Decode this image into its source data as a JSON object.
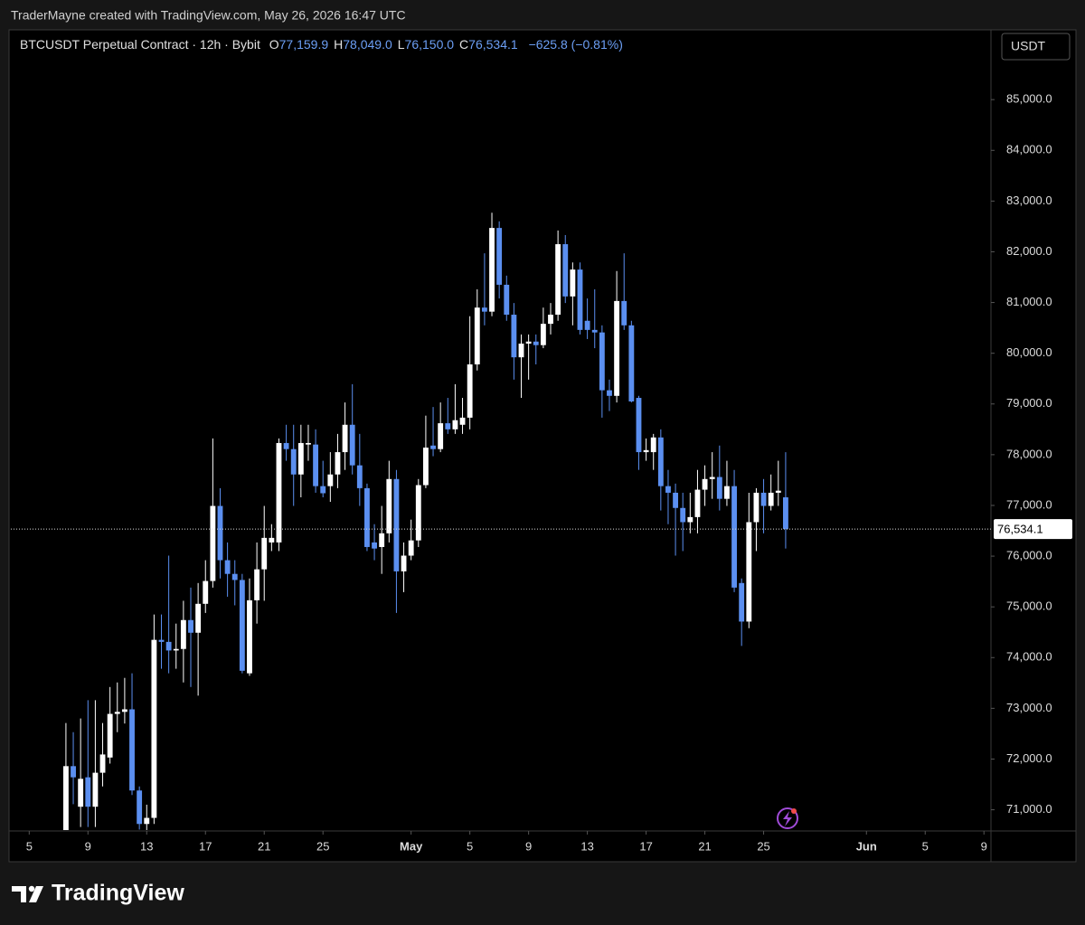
{
  "header": {
    "caption": "TraderMayne created with TradingView.com, May 26, 2026 16:47 UTC"
  },
  "legend": {
    "symbol": "BTCUSDT Perpetual Contract · 12h · Bybit",
    "ohlc": [
      {
        "key": "O",
        "label": "77,159.9"
      },
      {
        "key": "H",
        "label": "78,049.0"
      },
      {
        "key": "L",
        "label": "76,150.0"
      },
      {
        "key": "C",
        "label": "76,534.1"
      }
    ],
    "change": "−625.8 (−0.81%)"
  },
  "currency": "USDT",
  "footer": {
    "brand": "TradingView"
  },
  "chart_data": {
    "type": "candlestick",
    "up_color": "#ffffff",
    "down_color": "#5b8ff0",
    "grid": false,
    "ylim": [
      70600,
      86340
    ],
    "yticks": [
      {
        "value": 71000,
        "label": "71,000.0"
      },
      {
        "value": 72000,
        "label": "72,000.0"
      },
      {
        "value": 73000,
        "label": "73,000.0"
      },
      {
        "value": 74000,
        "label": "74,000.0"
      },
      {
        "value": 75000,
        "label": "75,000.0"
      },
      {
        "value": 76000,
        "label": "76,000.0"
      },
      {
        "value": 77000,
        "label": "77,000.0"
      },
      {
        "value": 78000,
        "label": "78,000.0"
      },
      {
        "value": 79000,
        "label": "79,000.0"
      },
      {
        "value": 80000,
        "label": "80,000.0"
      },
      {
        "value": 81000,
        "label": "81,000.0"
      },
      {
        "value": 82000,
        "label": "82,000.0"
      },
      {
        "value": 83000,
        "label": "83,000.0"
      },
      {
        "value": 84000,
        "label": "84,000.0"
      },
      {
        "value": 85000,
        "label": "85,000.0"
      }
    ],
    "xlim": [
      "2026-04-03T18:00",
      "2026-06-09T10:00"
    ],
    "xticks": [
      {
        "value": "2026-04-05",
        "label": "5"
      },
      {
        "value": "2026-04-09",
        "label": "9"
      },
      {
        "value": "2026-04-13",
        "label": "13"
      },
      {
        "value": "2026-04-17",
        "label": "17"
      },
      {
        "value": "2026-04-21",
        "label": "21"
      },
      {
        "value": "2026-04-25",
        "label": "25"
      },
      {
        "value": "2026-05-01",
        "label": "May"
      },
      {
        "value": "2026-05-05",
        "label": "5"
      },
      {
        "value": "2026-05-09",
        "label": "9"
      },
      {
        "value": "2026-05-13",
        "label": "13"
      },
      {
        "value": "2026-05-17",
        "label": "17"
      },
      {
        "value": "2026-05-21",
        "label": "21"
      },
      {
        "value": "2026-05-25",
        "label": "25"
      },
      {
        "value": "2026-06-01",
        "label": "Jun"
      },
      {
        "value": "2026-06-05",
        "label": "5"
      },
      {
        "value": "2026-06-09",
        "label": "9"
      }
    ],
    "last_price": {
      "value": 76534.1,
      "label": "76,534.1"
    },
    "x": [
      "2026-04-07T12:00",
      "2026-04-08T00:00",
      "2026-04-08T12:00",
      "2026-04-09T00:00",
      "2026-04-09T12:00",
      "2026-04-10T00:00",
      "2026-04-10T12:00",
      "2026-04-11T00:00",
      "2026-04-11T12:00",
      "2026-04-12T00:00",
      "2026-04-12T12:00",
      "2026-04-13T00:00",
      "2026-04-13T12:00",
      "2026-04-14T00:00",
      "2026-04-14T12:00",
      "2026-04-15T00:00",
      "2026-04-15T12:00",
      "2026-04-16T00:00",
      "2026-04-16T12:00",
      "2026-04-17T00:00",
      "2026-04-17T12:00",
      "2026-04-18T00:00",
      "2026-04-18T12:00",
      "2026-04-19T00:00",
      "2026-04-19T12:00",
      "2026-04-20T00:00",
      "2026-04-20T12:00",
      "2026-04-21T00:00",
      "2026-04-21T12:00",
      "2026-04-22T00:00",
      "2026-04-22T12:00",
      "2026-04-23T00:00",
      "2026-04-23T12:00",
      "2026-04-24T00:00",
      "2026-04-24T12:00",
      "2026-04-25T00:00",
      "2026-04-25T12:00",
      "2026-04-26T00:00",
      "2026-04-26T12:00",
      "2026-04-27T00:00",
      "2026-04-27T12:00",
      "2026-04-28T00:00",
      "2026-04-28T12:00",
      "2026-04-29T00:00",
      "2026-04-29T12:00",
      "2026-04-30T00:00",
      "2026-04-30T12:00",
      "2026-05-01T00:00",
      "2026-05-01T12:00",
      "2026-05-02T00:00",
      "2026-05-02T12:00",
      "2026-05-03T00:00",
      "2026-05-03T12:00",
      "2026-05-04T00:00",
      "2026-05-04T12:00",
      "2026-05-05T00:00",
      "2026-05-05T12:00",
      "2026-05-06T00:00",
      "2026-05-06T12:00",
      "2026-05-07T00:00",
      "2026-05-07T12:00",
      "2026-05-08T00:00",
      "2026-05-08T12:00",
      "2026-05-09T00:00",
      "2026-05-09T12:00",
      "2026-05-10T00:00",
      "2026-05-10T12:00",
      "2026-05-11T00:00",
      "2026-05-11T12:00",
      "2026-05-12T00:00",
      "2026-05-12T12:00",
      "2026-05-13T00:00",
      "2026-05-13T12:00",
      "2026-05-14T00:00",
      "2026-05-14T12:00",
      "2026-05-15T00:00",
      "2026-05-15T12:00",
      "2026-05-16T00:00",
      "2026-05-16T12:00",
      "2026-05-17T00:00",
      "2026-05-17T12:00",
      "2026-05-18T00:00",
      "2026-05-18T12:00",
      "2026-05-19T00:00",
      "2026-05-19T12:00",
      "2026-05-20T00:00",
      "2026-05-20T12:00",
      "2026-05-21T00:00",
      "2026-05-21T12:00",
      "2026-05-22T00:00",
      "2026-05-22T12:00",
      "2026-05-23T00:00",
      "2026-05-23T12:00",
      "2026-05-24T00:00",
      "2026-05-24T12:00",
      "2026-05-25T00:00",
      "2026-05-25T12:00",
      "2026-05-26T00:00",
      "2026-05-26T12:00"
    ],
    "open": [
      70400,
      71860,
      71060,
      71640,
      71060,
      71730,
      72030,
      72890,
      72930,
      72980,
      71380,
      70720,
      70840,
      74350,
      74310,
      74140,
      74170,
      74740,
      74490,
      75060,
      75510,
      76990,
      75920,
      75650,
      75530,
      73690,
      75130,
      75740,
      76270,
      76270,
      78230,
      78110,
      77610,
      78200,
      78200,
      77380,
      77380,
      77610,
      78050,
      78590,
      77790,
      77340,
      76270,
      76180,
      76450,
      77520,
      75700,
      76010,
      76310,
      77400,
      78180,
      78110,
      78620,
      78500,
      78590,
      78730,
      79780,
      80900,
      80820,
      82470,
      81350,
      80760,
      79920,
      80190,
      80230,
      80160,
      80580,
      80760,
      82150,
      81120,
      81650,
      80640,
      80460,
      80410,
      79270,
      79160,
      81030,
      80550,
      79120,
      78050,
      78050,
      78340,
      77380,
      77250,
      76950,
      76670,
      76770,
      77310,
      77520,
      77560,
      77130,
      77380,
      75470,
      74710,
      76670,
      77250,
      76990,
      77250,
      77159.9
    ],
    "high": [
      72710,
      72530,
      72800,
      73160,
      73160,
      72710,
      73420,
      73510,
      73600,
      73690,
      71460,
      71100,
      74850,
      74850,
      76010,
      74670,
      75120,
      75380,
      75470,
      75920,
      78320,
      77340,
      76270,
      75920,
      75650,
      75560,
      76270,
      76990,
      76630,
      78320,
      78590,
      78590,
      78590,
      78590,
      78500,
      77880,
      78050,
      78410,
      79030,
      79390,
      78410,
      77430,
      76630,
      76990,
      77880,
      77700,
      76270,
      76720,
      77520,
      78770,
      78940,
      79030,
      79120,
      79390,
      79120,
      80730,
      81260,
      81970,
      82770,
      82600,
      81530,
      80990,
      80370,
      80370,
      80370,
      80900,
      80990,
      82420,
      82330,
      81790,
      81790,
      81080,
      81260,
      80550,
      79480,
      81620,
      81970,
      80640,
      79160,
      78320,
      78410,
      78500,
      77700,
      77430,
      77250,
      77250,
      77700,
      77790,
      78050,
      78180,
      77880,
      77700,
      75560,
      77250,
      77340,
      77520,
      77610,
      77880,
      78049
    ],
    "low": [
      70300,
      71110,
      70660,
      70660,
      70660,
      71460,
      71910,
      72530,
      72700,
      71290,
      70610,
      70500,
      70720,
      73780,
      73690,
      73780,
      73510,
      73420,
      73250,
      74880,
      75380,
      75560,
      75200,
      75030,
      73690,
      73640,
      74670,
      75120,
      76100,
      76100,
      77880,
      76990,
      77160,
      77880,
      77250,
      77160,
      77070,
      77340,
      77700,
      77610,
      76990,
      76100,
      75920,
      75650,
      76270,
      74880,
      75290,
      75920,
      76180,
      77340,
      77970,
      78050,
      78410,
      78410,
      78410,
      78500,
      79660,
      80550,
      80730,
      81080,
      80640,
      79480,
      79120,
      79480,
      79780,
      80100,
      80370,
      80640,
      80990,
      80550,
      80370,
      80280,
      80100,
      78730,
      78860,
      79030,
      80460,
      79030,
      77700,
      77880,
      77700,
      76900,
      76630,
      76010,
      76100,
      76450,
      76450,
      76990,
      77130,
      76900,
      76990,
      75290,
      74230,
      74580,
      76100,
      76450,
      76900,
      76990,
      76150
    ],
    "close": [
      71860,
      71640,
      71610,
      71060,
      71730,
      72090,
      72890,
      72930,
      72980,
      71380,
      70720,
      70840,
      74350,
      74310,
      74140,
      74170,
      74740,
      74490,
      75060,
      75510,
      76990,
      75920,
      75650,
      75530,
      73740,
      75130,
      75740,
      76360,
      76360,
      78230,
      78110,
      77610,
      78230,
      78230,
      77380,
      77240,
      77610,
      78050,
      78590,
      77790,
      77340,
      76180,
      76150,
      76450,
      77520,
      75700,
      76010,
      76310,
      77400,
      78140,
      78110,
      78620,
      78500,
      78680,
      78730,
      79780,
      80900,
      80820,
      82470,
      81350,
      80760,
      79920,
      80190,
      80230,
      80160,
      80580,
      80760,
      82150,
      81120,
      81650,
      80460,
      80460,
      80410,
      79270,
      79160,
      81030,
      80550,
      79050,
      78050,
      78090,
      78340,
      77380,
      77250,
      76950,
      76670,
      76770,
      77310,
      77520,
      77560,
      77130,
      77380,
      75380,
      74710,
      76670,
      77250,
      76990,
      77250,
      77290,
      76534.1
    ]
  }
}
